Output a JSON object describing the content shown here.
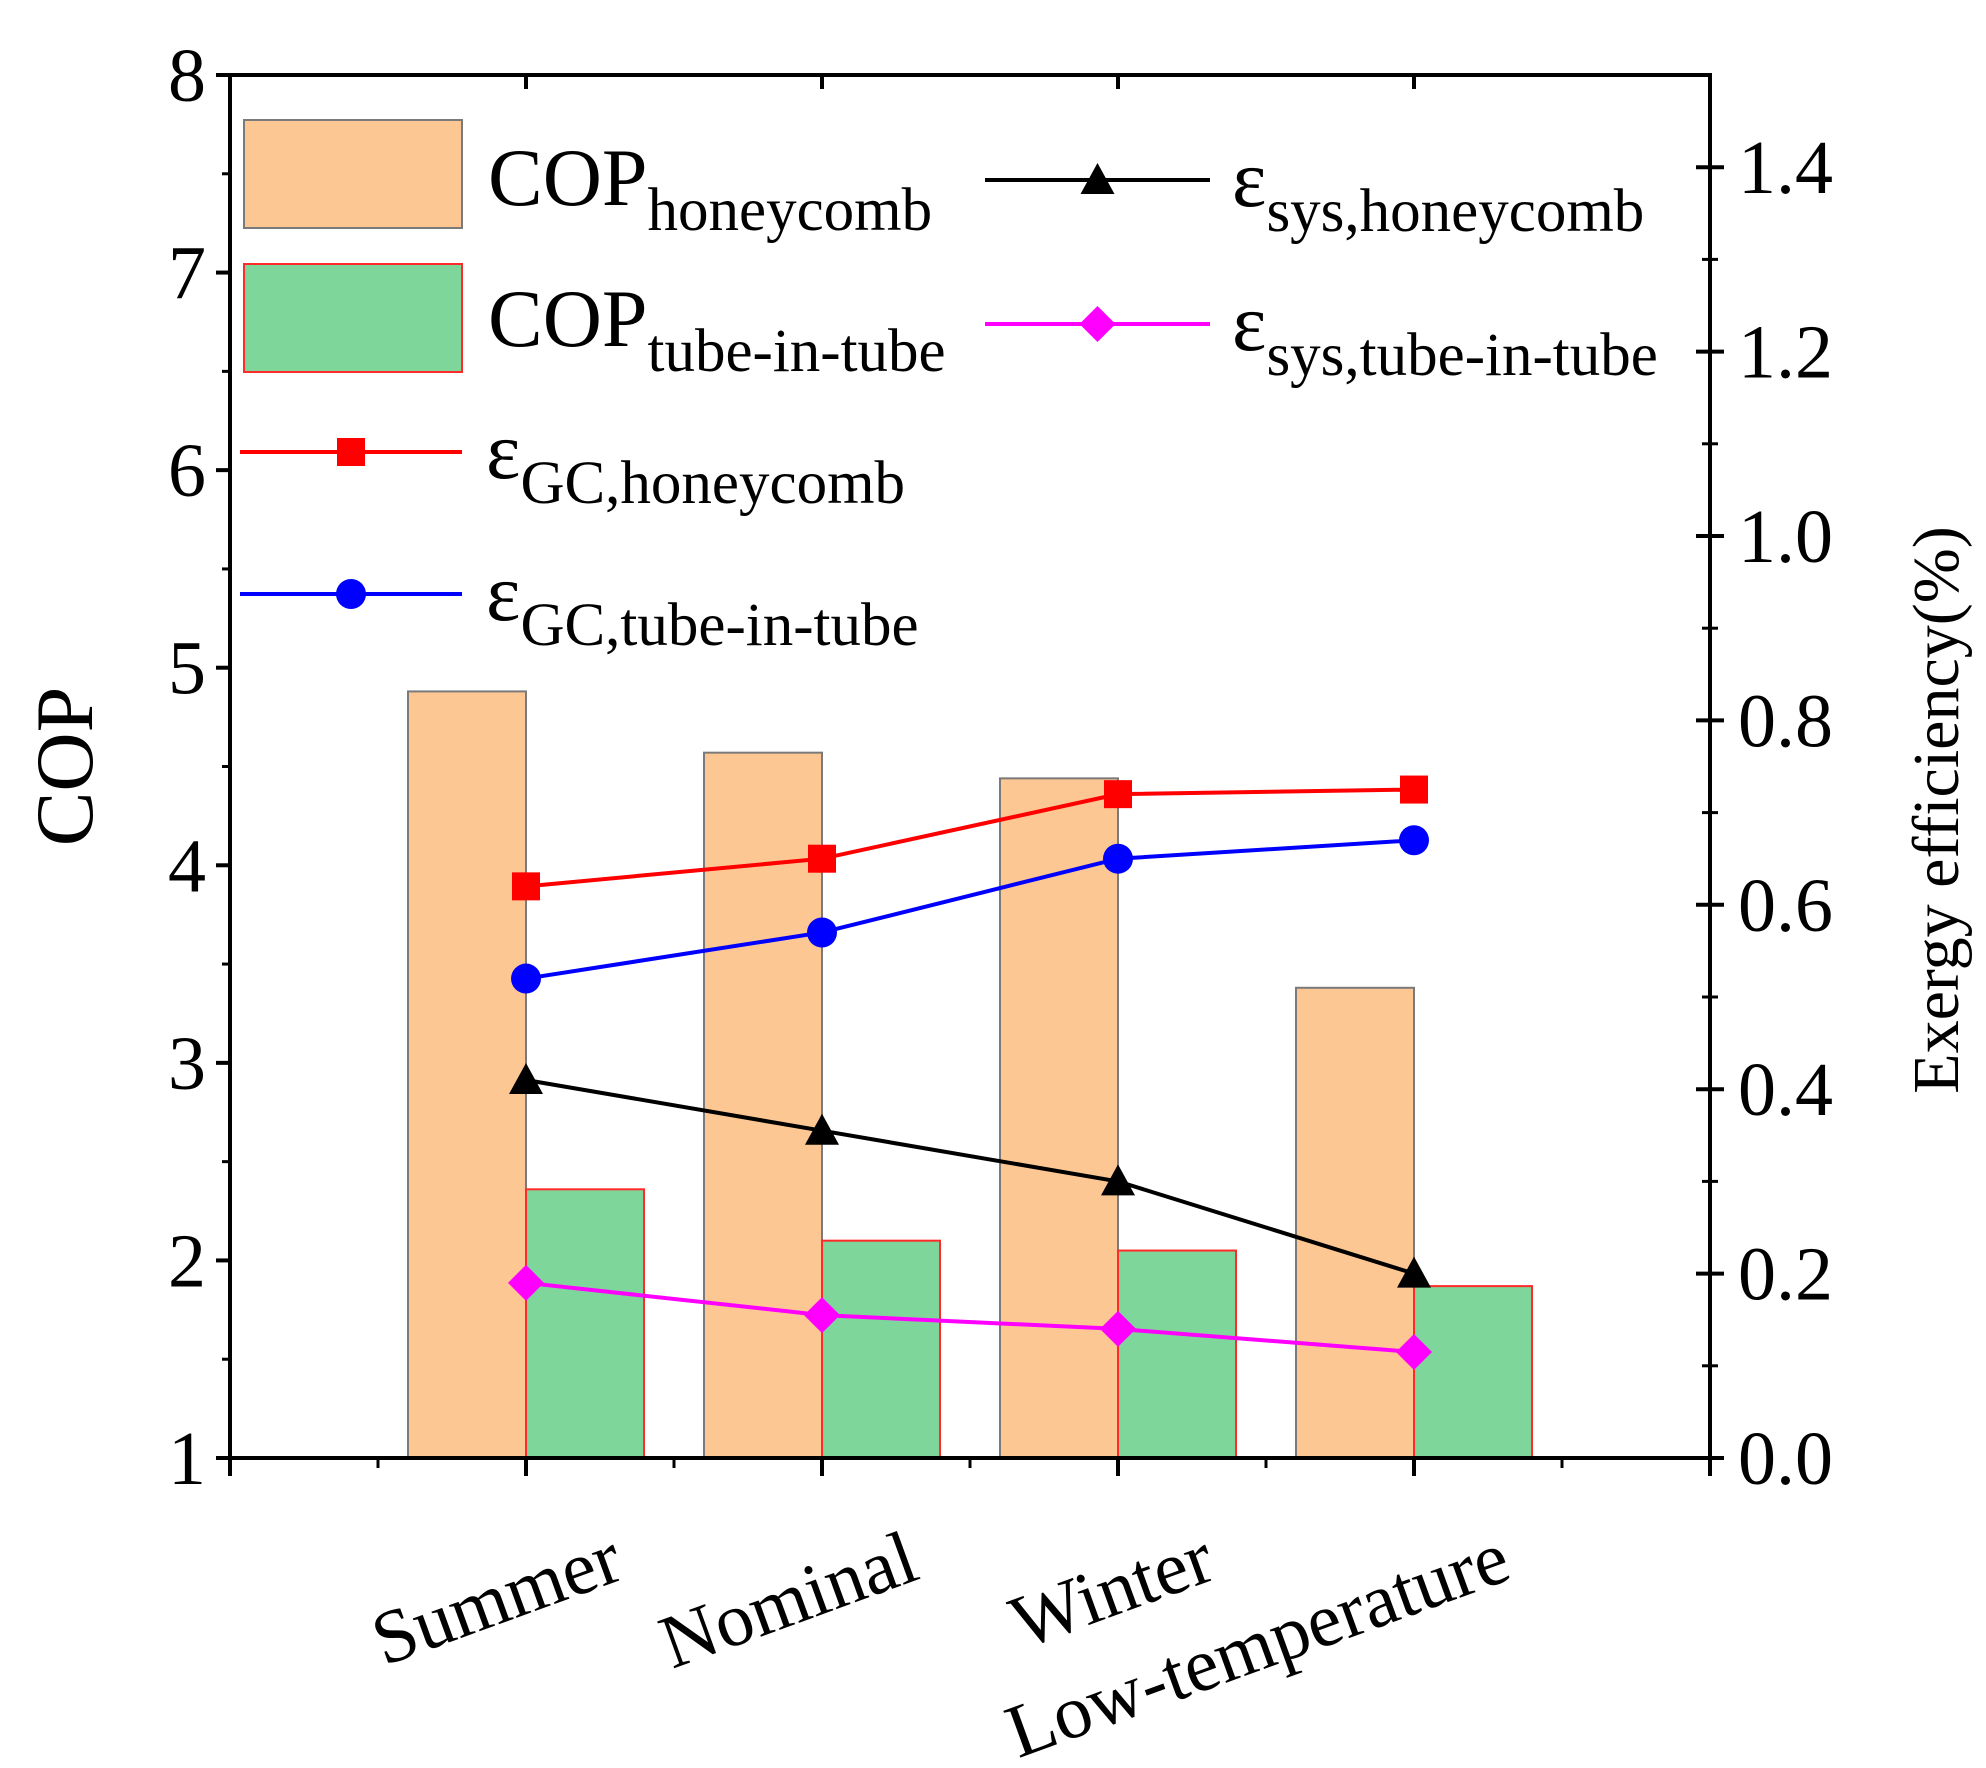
{
  "chart_data": {
    "type": "bar+line",
    "categories": [
      "Summer",
      "Nominal",
      "Winter",
      "Low-temperature"
    ],
    "left_axis": {
      "label": "COP",
      "range": [
        1,
        8
      ],
      "ticks": [
        "1",
        "2",
        "3",
        "4",
        "5",
        "6",
        "7",
        "8"
      ]
    },
    "right_axis": {
      "label": "Exergy efficiency(%)",
      "range": [
        0,
        1.5
      ],
      "ticks": [
        "0.0",
        "0.2",
        "0.4",
        "0.6",
        "0.8",
        "1.0",
        "1.2",
        "1.4"
      ]
    },
    "bar_series": [
      {
        "base": "COP",
        "sub": "honeycomb",
        "values": [
          4.88,
          4.57,
          4.44,
          3.38
        ],
        "color": "#fdc794",
        "stroke": "#7a7a7a"
      },
      {
        "base": "COP",
        "sub": "tube-in-tube",
        "values": [
          2.36,
          2.1,
          2.05,
          1.87
        ],
        "color": "#7fd69a",
        "stroke": "#ff2a2a"
      }
    ],
    "line_series": [
      {
        "base": "ε",
        "sub": "GC,honeycomb",
        "values": [
          0.62,
          0.65,
          0.72,
          0.725
        ],
        "color": "#ff0000",
        "marker": "square"
      },
      {
        "base": "ε",
        "sub": "GC,tube-in-tube",
        "values": [
          0.52,
          0.57,
          0.65,
          0.67
        ],
        "color": "#0000ff",
        "marker": "circle"
      },
      {
        "base": "ε",
        "sub": "sys,honeycomb",
        "values": [
          0.41,
          0.355,
          0.3,
          0.2
        ],
        "color": "#000000",
        "marker": "triangle"
      },
      {
        "base": "ε",
        "sub": "sys,tube-in-tube",
        "values": [
          0.19,
          0.155,
          0.14,
          0.115
        ],
        "color": "#ff00ff",
        "marker": "diamond"
      }
    ]
  }
}
